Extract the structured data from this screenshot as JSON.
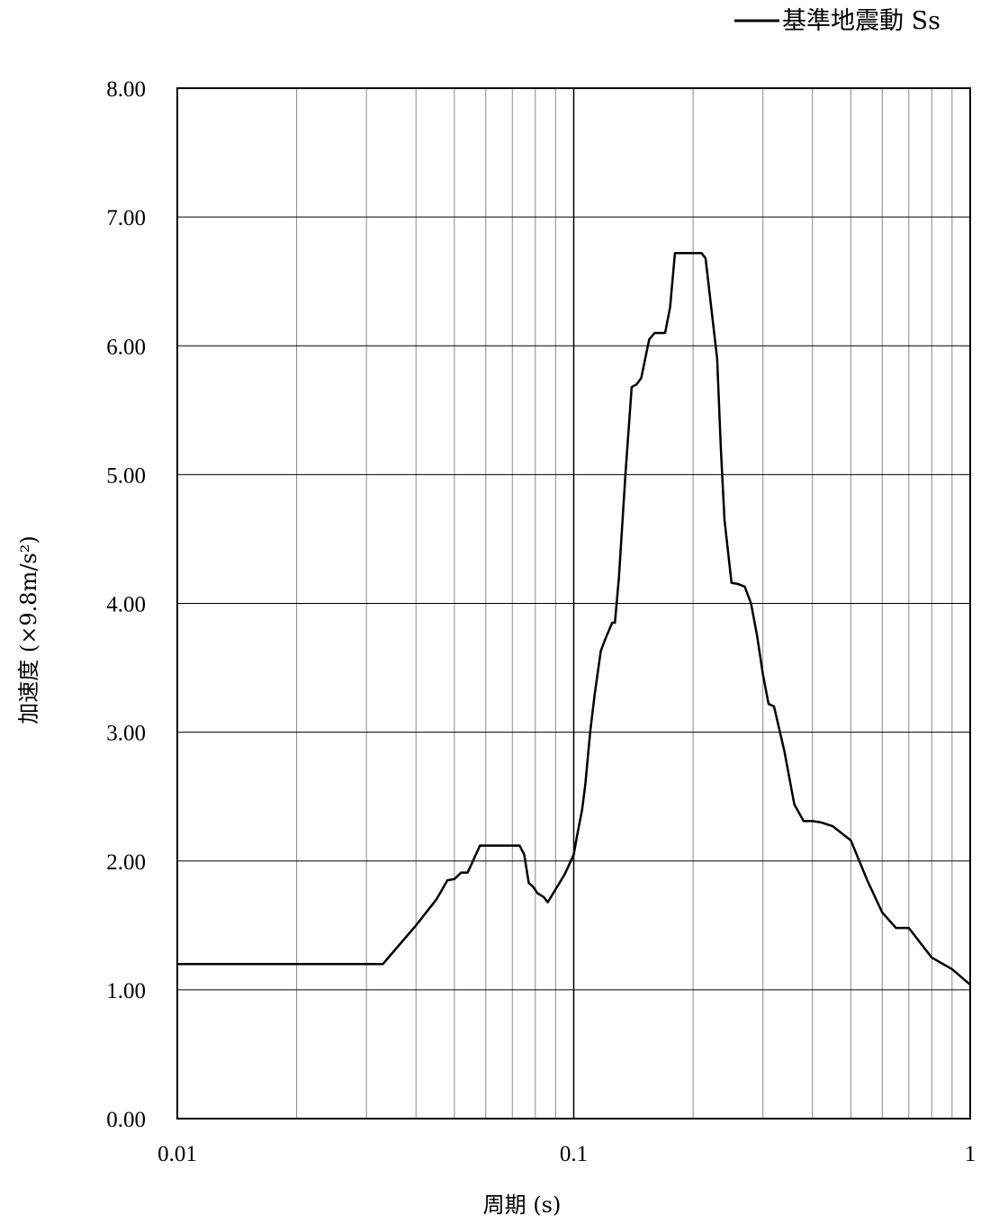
{
  "chart_data": {
    "type": "line",
    "title": "",
    "xlabel": "周期 (s)",
    "ylabel": "加速度 (×9.8m/s²)",
    "x_scale": "log",
    "xlim": [
      0.01,
      1
    ],
    "ylim": [
      0,
      8
    ],
    "x_ticks": [
      "0.01",
      "0.1",
      "1"
    ],
    "y_ticks": [
      "0.00",
      "1.00",
      "2.00",
      "3.00",
      "4.00",
      "5.00",
      "6.00",
      "7.00",
      "8.00"
    ],
    "grid": true,
    "legend_position": "top-right",
    "series": [
      {
        "name": "基準地震動 Ss",
        "color": "#000000",
        "x": [
          0.01,
          0.033,
          0.04,
          0.045,
          0.048,
          0.05,
          0.052,
          0.054,
          0.058,
          0.07,
          0.073,
          0.075,
          0.077,
          0.079,
          0.081,
          0.084,
          0.086,
          0.09,
          0.095,
          0.1,
          0.102,
          0.105,
          0.107,
          0.11,
          0.113,
          0.117,
          0.12,
          0.125,
          0.127,
          0.13,
          0.135,
          0.14,
          0.144,
          0.148,
          0.155,
          0.16,
          0.17,
          0.175,
          0.18,
          0.21,
          0.215,
          0.23,
          0.235,
          0.24,
          0.25,
          0.26,
          0.27,
          0.28,
          0.29,
          0.3,
          0.31,
          0.32,
          0.34,
          0.36,
          0.38,
          0.4,
          0.42,
          0.45,
          0.5,
          0.55,
          0.6,
          0.65,
          0.7,
          0.8,
          0.9,
          1.0
        ],
        "values": [
          1.2,
          1.2,
          1.5,
          1.7,
          1.85,
          1.86,
          1.91,
          1.91,
          2.12,
          2.12,
          2.12,
          2.05,
          1.83,
          1.8,
          1.75,
          1.72,
          1.68,
          1.78,
          1.9,
          2.05,
          2.2,
          2.4,
          2.6,
          3.0,
          3.3,
          3.63,
          3.72,
          3.85,
          3.85,
          4.2,
          5.0,
          5.68,
          5.7,
          5.75,
          6.05,
          6.1,
          6.1,
          6.3,
          6.72,
          6.72,
          6.68,
          5.9,
          5.2,
          4.65,
          4.16,
          4.15,
          4.13,
          4.0,
          3.75,
          3.45,
          3.22,
          3.2,
          2.85,
          2.44,
          2.31,
          2.31,
          2.3,
          2.27,
          2.16,
          1.85,
          1.6,
          1.48,
          1.48,
          1.25,
          1.16,
          1.04
        ]
      }
    ]
  }
}
